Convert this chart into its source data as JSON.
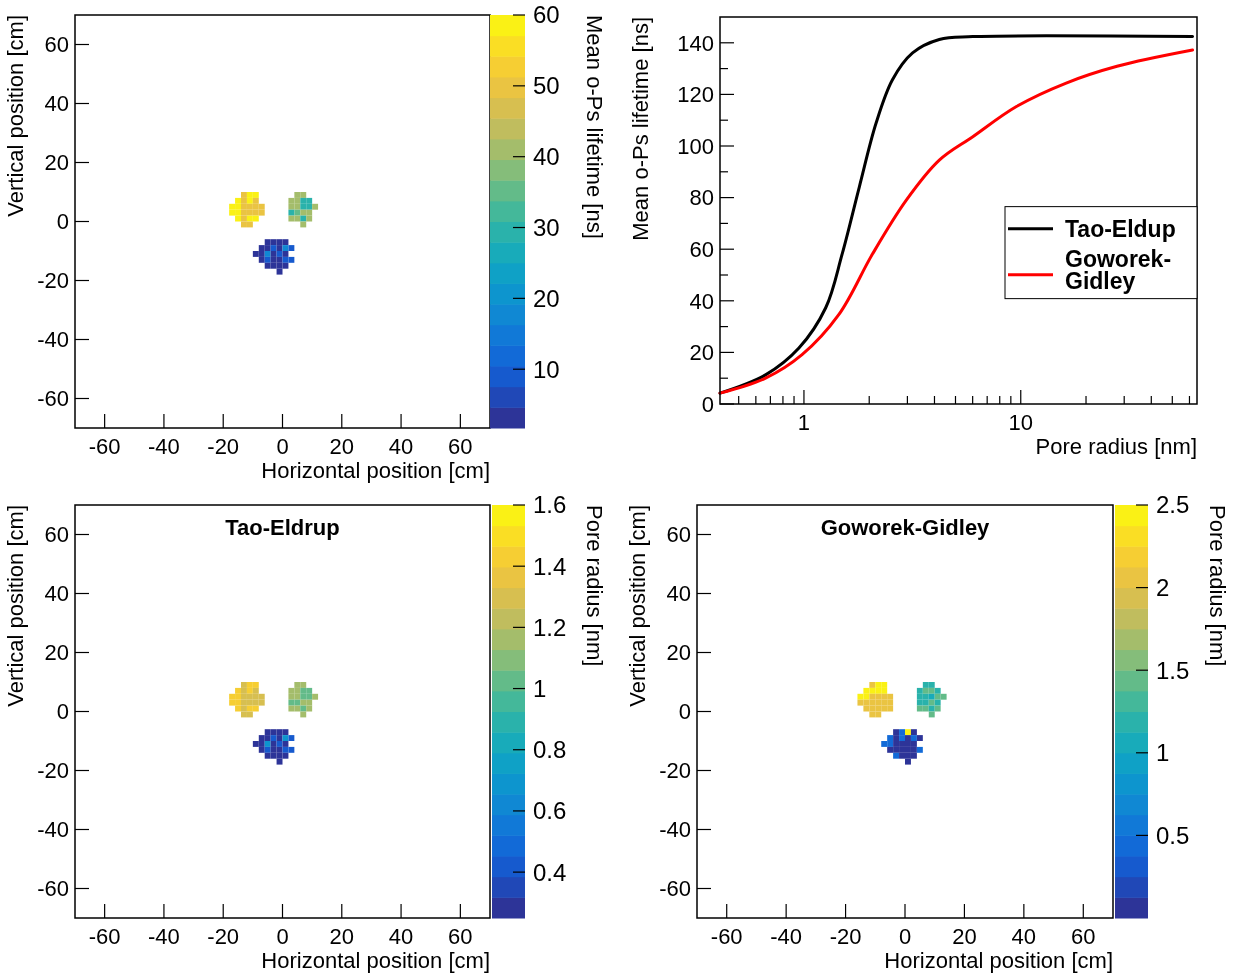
{
  "chart_data": [
    {
      "type": "scatter",
      "marker": "square",
      "xlabel": "Horizontal position [cm]",
      "ylabel": "Vertical position [cm]",
      "clabel": "Mean o-Ps lifetime [ns]",
      "xlim": [
        -70,
        70
      ],
      "ylim": [
        -70,
        70
      ],
      "xticks": [
        -60,
        -40,
        -20,
        0,
        20,
        40,
        60
      ],
      "yticks": [
        -60,
        -40,
        -20,
        0,
        20,
        40,
        60
      ],
      "clim": [
        1.7,
        60
      ],
      "cticks": [
        10,
        20,
        30,
        40,
        50,
        60
      ],
      "x": [
        -13,
        -11,
        -9,
        -15,
        -13,
        -11,
        -9,
        -17,
        -15,
        -13,
        -11,
        -9,
        -7,
        -17,
        -15,
        -13,
        -11,
        -9,
        -7,
        -15,
        -13,
        -11,
        -9,
        -13,
        -11,
        5,
        7,
        3,
        5,
        7,
        9,
        3,
        5,
        7,
        9,
        11,
        3,
        5,
        7,
        9,
        3,
        5,
        7,
        9,
        7,
        -5,
        -3,
        -1,
        1,
        -7,
        -5,
        -3,
        -1,
        1,
        3,
        -9,
        -7,
        -5,
        -3,
        -1,
        1,
        -7,
        -5,
        -3,
        -1,
        1,
        3,
        -5,
        -3,
        -1,
        1,
        -1
      ],
      "values": [
        9,
        9,
        9,
        7,
        7,
        7,
        7,
        5,
        5,
        5,
        5,
        5,
        5,
        3,
        3,
        3,
        3,
        3,
        3,
        1,
        1,
        1,
        1,
        -1,
        -1,
        9,
        9,
        7,
        7,
        7,
        7,
        5,
        5,
        5,
        5,
        5,
        3,
        3,
        3,
        3,
        1,
        1,
        1,
        1,
        -1,
        -7,
        -7,
        -7,
        -7,
        -9,
        -9,
        -9,
        -9,
        -9,
        -9,
        -11,
        -11,
        -11,
        -11,
        -11,
        -11,
        -13,
        -13,
        -13,
        -13,
        -13,
        -13,
        -15,
        -15,
        -15,
        -15,
        -17
      ],
      "cvalues": [
        50,
        58,
        58,
        58,
        50,
        58,
        50,
        58,
        58,
        50,
        50,
        50,
        50,
        58,
        58,
        50,
        50,
        50,
        50,
        58,
        50,
        58,
        58,
        50,
        50,
        40,
        40,
        40,
        40,
        30,
        30,
        40,
        40,
        30,
        30,
        40,
        30,
        35,
        40,
        40,
        40,
        40,
        30,
        40,
        40,
        4,
        4,
        4,
        4,
        4,
        4,
        10,
        4,
        18,
        10,
        4,
        4,
        18,
        4,
        10,
        4,
        4,
        10,
        4,
        4,
        10,
        10,
        4,
        4,
        4,
        4,
        4
      ]
    },
    {
      "type": "line",
      "log": "x",
      "xlabel": "Pore radius [nm]",
      "ylabel": "Mean o-Ps lifetime [ns]",
      "xlim": [
        0.41,
        65
      ],
      "ylim": [
        0,
        150
      ],
      "legend": "right",
      "xticks": [
        {
          "value": 0.5,
          "label": null
        },
        {
          "value": 0.6,
          "label": null
        },
        {
          "value": 0.7,
          "label": null
        },
        {
          "value": 0.8,
          "label": null
        },
        {
          "value": 0.9,
          "label": null
        },
        1,
        {
          "value": 2,
          "label": null
        },
        {
          "value": 3,
          "label": null
        },
        {
          "value": 4,
          "label": null
        },
        {
          "value": 5,
          "label": null
        },
        {
          "value": 6,
          "label": null
        },
        {
          "value": 7,
          "label": null
        },
        {
          "value": 8,
          "label": null
        },
        {
          "value": 9,
          "label": null
        },
        10,
        {
          "value": 20,
          "label": null
        },
        {
          "value": 30,
          "label": null
        },
        {
          "value": 40,
          "label": null
        },
        {
          "value": 50,
          "label": null
        },
        {
          "value": 60,
          "label": null
        }
      ],
      "yticks": [
        0,
        {
          "value": 10,
          "label": null
        },
        20,
        {
          "value": 30,
          "label": null
        },
        40,
        {
          "value": 50,
          "label": null
        },
        60,
        {
          "value": 70,
          "label": null
        },
        80,
        {
          "value": 90,
          "label": null
        },
        100,
        {
          "value": 110,
          "label": null
        },
        120,
        {
          "value": 130,
          "label": null
        },
        140
      ],
      "series": [
        {
          "name": "Tao-Eldup",
          "color": "#000000",
          "x": [
            0.41,
            0.665,
            0.948,
            1.26,
            1.5,
            1.8,
            2.15,
            2.56,
            3.17,
            4.21,
            6.01,
            62
          ],
          "values": [
            4.2,
            11.3,
            21.7,
            37.3,
            58.1,
            84.1,
            108.8,
            125.7,
            136.1,
            141.3,
            142.4,
            142.4
          ]
        },
        {
          "name": "Goworek-Gidley",
          "color": "#ff0000",
          "x": [
            0.41,
            0.665,
            0.98,
            1.45,
            2.07,
            2.96,
            4.21,
            6.01,
            9.55,
            16.2,
            27.8,
            62
          ],
          "values": [
            4.2,
            10,
            19.1,
            34.7,
            58.1,
            78.9,
            94.5,
            103.6,
            115.3,
            124.4,
            130.9,
            137.2
          ]
        }
      ]
    },
    {
      "type": "scatter",
      "marker": "square",
      "title": "Tao-Eldrup",
      "xlabel": "Horizontal position [cm]",
      "ylabel": "Vertical position [cm]",
      "clabel": "Pore radius [nm]",
      "xlim": [
        -70,
        70
      ],
      "ylim": [
        -70,
        70
      ],
      "xticks": [
        -60,
        -40,
        -20,
        0,
        20,
        40,
        60
      ],
      "yticks": [
        -60,
        -40,
        -20,
        0,
        20,
        40,
        60
      ],
      "clim": [
        0.25,
        1.6
      ],
      "cticks": [
        0.4,
        0.6,
        0.8,
        1,
        1.2,
        1.4,
        1.6
      ],
      "x": [
        -13,
        -11,
        -9,
        -15,
        -13,
        -11,
        -9,
        -17,
        -15,
        -13,
        -11,
        -9,
        -7,
        -17,
        -15,
        -13,
        -11,
        -9,
        -7,
        -15,
        -13,
        -11,
        -9,
        -13,
        -11,
        5,
        7,
        3,
        5,
        7,
        9,
        3,
        5,
        7,
        9,
        11,
        3,
        5,
        7,
        9,
        3,
        5,
        7,
        9,
        7,
        -5,
        -3,
        -1,
        1,
        -7,
        -5,
        -3,
        -1,
        1,
        3,
        -9,
        -7,
        -5,
        -3,
        -1,
        1,
        -7,
        -5,
        -3,
        -1,
        1,
        3,
        -5,
        -3,
        -1,
        1,
        -1
      ],
      "values": [
        9,
        9,
        9,
        7,
        7,
        7,
        7,
        5,
        5,
        5,
        5,
        5,
        5,
        3,
        3,
        3,
        3,
        3,
        3,
        1,
        1,
        1,
        1,
        -1,
        -1,
        9,
        9,
        7,
        7,
        7,
        7,
        5,
        5,
        5,
        5,
        5,
        3,
        3,
        3,
        3,
        1,
        1,
        1,
        1,
        -1,
        -7,
        -7,
        -7,
        -7,
        -9,
        -9,
        -9,
        -9,
        -9,
        -9,
        -11,
        -11,
        -11,
        -11,
        -11,
        -11,
        -13,
        -13,
        -13,
        -13,
        -13,
        -13,
        -15,
        -15,
        -15,
        -15,
        -17
      ],
      "cvalues": [
        1.3,
        1.45,
        1.45,
        1.45,
        1.3,
        1.45,
        1.3,
        1.45,
        1.45,
        1.3,
        1.3,
        1.3,
        1.3,
        1.45,
        1.45,
        1.3,
        1.3,
        1.3,
        1.3,
        1.45,
        1.3,
        1.45,
        1.45,
        1.3,
        1.3,
        1.15,
        1.15,
        1.15,
        1.15,
        1,
        1,
        1.15,
        1.15,
        1,
        1,
        1.15,
        1,
        1.05,
        1.15,
        1.15,
        1.15,
        1.15,
        1,
        1.15,
        1.15,
        0.3,
        0.3,
        0.3,
        0.3,
        0.3,
        0.3,
        0.45,
        0.3,
        0.7,
        0.45,
        0.3,
        0.3,
        0.7,
        0.3,
        0.45,
        0.3,
        0.3,
        0.45,
        0.3,
        0.3,
        0.45,
        0.45,
        0.3,
        0.3,
        0.3,
        0.3,
        0.3
      ]
    },
    {
      "type": "scatter",
      "marker": "square",
      "title": "Goworek-Gidley",
      "xlabel": "Horizontal position [cm]",
      "ylabel": "Vertical position [cm]",
      "clabel": "Pore radius [nm]",
      "xlim": [
        -70,
        70
      ],
      "ylim": [
        -70,
        70
      ],
      "xticks": [
        -60,
        -40,
        -20,
        0,
        20,
        40,
        60
      ],
      "yticks": [
        -60,
        -40,
        -20,
        0,
        20,
        40,
        60
      ],
      "clim": [
        0,
        2.5
      ],
      "cticks": [
        0.5,
        1,
        1.5,
        2,
        2.5
      ],
      "x": [
        -11,
        -9,
        -7,
        -13,
        -11,
        -9,
        -7,
        -15,
        -13,
        -11,
        -9,
        -7,
        -5,
        -15,
        -13,
        -11,
        -9,
        -7,
        -5,
        -13,
        -11,
        -9,
        -7,
        -5,
        -11,
        -9,
        7,
        9,
        5,
        7,
        9,
        11,
        5,
        7,
        9,
        11,
        13,
        5,
        7,
        9,
        11,
        5,
        7,
        9,
        11,
        9,
        -3,
        -1,
        1,
        3,
        -5,
        -3,
        -1,
        1,
        3,
        5,
        -7,
        -5,
        -3,
        -1,
        1,
        3,
        -5,
        -3,
        -1,
        1,
        3,
        5,
        -3,
        -1,
        1,
        3,
        1
      ],
      "values": [
        9,
        9,
        9,
        7,
        7,
        7,
        7,
        5,
        5,
        5,
        5,
        5,
        5,
        3,
        3,
        3,
        3,
        3,
        3,
        1,
        1,
        1,
        1,
        1,
        -1,
        -1,
        9,
        9,
        7,
        7,
        7,
        7,
        5,
        5,
        5,
        5,
        5,
        3,
        3,
        3,
        3,
        1,
        1,
        1,
        1,
        -1,
        -7,
        -7,
        -7,
        -7,
        -9,
        -9,
        -9,
        -9,
        -9,
        -9,
        -11,
        -11,
        -11,
        -11,
        -11,
        -11,
        -13,
        -13,
        -13,
        -13,
        -13,
        -13,
        -15,
        -15,
        -15,
        -15,
        -17
      ],
      "cvalues": [
        2.05,
        2.4,
        2.4,
        2.4,
        2.4,
        2.4,
        2.4,
        2.4,
        2.4,
        2.05,
        2.05,
        2.05,
        2.05,
        2.05,
        2.05,
        2.05,
        2.05,
        2.05,
        2.05,
        2.05,
        2.05,
        2.05,
        2.05,
        2.05,
        2.05,
        2.05,
        1.2,
        1.2,
        1.2,
        1.45,
        1.45,
        1.2,
        1.2,
        1.2,
        1.05,
        1.45,
        1.45,
        1.2,
        1.2,
        1.45,
        1.2,
        1.45,
        1.45,
        1.2,
        1.45,
        1.45,
        0.1,
        0.45,
        2.45,
        0.1,
        0.45,
        0.1,
        0.45,
        0.1,
        0.45,
        0.1,
        0.45,
        0.45,
        0.1,
        0.1,
        0.1,
        0.1,
        0.1,
        0.1,
        0.1,
        0.1,
        0.1,
        0.45,
        0.45,
        0.1,
        0.1,
        0.1,
        0.1
      ]
    }
  ]
}
